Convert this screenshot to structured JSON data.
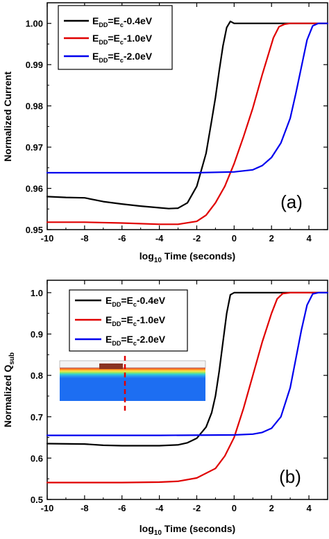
{
  "chart_data": [
    {
      "type": "line",
      "panel_label": "(a)",
      "xlabel": {
        "prefix": "log",
        "subscript": "10",
        "suffix": " Time (seconds)"
      },
      "ylabel": "Normalized Current",
      "xlim": [
        -10,
        5
      ],
      "ylim": [
        0.95,
        1.005
      ],
      "xticks": [
        -10,
        -8,
        -6,
        -4,
        -2,
        0,
        2,
        4
      ],
      "xtick_labels": [
        "-10",
        "-8",
        "-6",
        "-4",
        "-2",
        "0",
        "2",
        "4"
      ],
      "yticks": [
        0.95,
        0.96,
        0.97,
        0.98,
        0.99,
        1.0
      ],
      "ytick_labels": [
        "0.95",
        "0.96",
        "0.97",
        "0.98",
        "0.99",
        "1.00"
      ],
      "legend_position": "top-left",
      "series": [
        {
          "name": "E_DD=E_c-0.4eV",
          "color": "#000000",
          "x": [
            -10,
            -9,
            -8,
            -7,
            -6,
            -5,
            -4,
            -3.5,
            -3,
            -2.5,
            -2,
            -1.5,
            -1.2,
            -1.0,
            -0.8,
            -0.6,
            -0.4,
            -0.2,
            0,
            1,
            2,
            3,
            4,
            5
          ],
          "y": [
            0.958,
            0.9578,
            0.9577,
            0.9568,
            0.9562,
            0.9557,
            0.9553,
            0.9551,
            0.9552,
            0.9565,
            0.9605,
            0.9685,
            0.9765,
            0.982,
            0.9885,
            0.9945,
            0.999,
            1.0005,
            1.0,
            1.0,
            1.0,
            1.0,
            1.0,
            1.0
          ]
        },
        {
          "name": "E_DD=E_c-1.0eV",
          "color": "#e00000",
          "x": [
            -10,
            -8,
            -6,
            -4,
            -3,
            -2,
            -1.5,
            -1,
            -0.5,
            0,
            0.5,
            1,
            1.5,
            1.8,
            2.1,
            2.4,
            2.7,
            3,
            4,
            5
          ],
          "y": [
            0.9518,
            0.9518,
            0.9516,
            0.9513,
            0.9513,
            0.952,
            0.9535,
            0.9565,
            0.9605,
            0.966,
            0.9725,
            0.9795,
            0.9875,
            0.992,
            0.9965,
            0.9992,
            0.9998,
            1.0,
            1.0,
            1.0
          ]
        },
        {
          "name": "E_DD=E_c-2.0eV",
          "color": "#0000ee",
          "x": [
            -10,
            -6,
            -2,
            0,
            1,
            1.5,
            2,
            2.5,
            3,
            3.3,
            3.6,
            3.9,
            4.2,
            4.5,
            5
          ],
          "y": [
            0.9638,
            0.9638,
            0.9638,
            0.964,
            0.9645,
            0.9655,
            0.9675,
            0.971,
            0.977,
            0.983,
            0.9895,
            0.996,
            0.9994,
            1.0,
            1.0
          ]
        }
      ]
    },
    {
      "type": "line",
      "panel_label": "(b)",
      "xlabel": {
        "prefix": "log",
        "subscript": "10",
        "suffix": " Time (seconds)"
      },
      "ylabel": {
        "prefix": "Normalized Q",
        "subscript": "sub"
      },
      "xlim": [
        -10,
        5
      ],
      "ylim": [
        0.5,
        1.03
      ],
      "xticks": [
        -10,
        -8,
        -6,
        -4,
        -2,
        0,
        2,
        4
      ],
      "xtick_labels": [
        "-10",
        "-8",
        "-6",
        "-4",
        "-2",
        "0",
        "2",
        "4"
      ],
      "yticks": [
        0.5,
        0.6,
        0.7,
        0.8,
        0.9,
        1.0
      ],
      "ytick_labels": [
        "0.5",
        "0.6",
        "0.7",
        "0.8",
        "0.9",
        "1.0"
      ],
      "legend_position": "top-left",
      "inset": "device cross-section contour with vertical dashed red line",
      "series": [
        {
          "name": "E_DD=E_c-0.4eV",
          "color": "#000000",
          "x": [
            -10,
            -8,
            -7,
            -6,
            -4,
            -3,
            -2.5,
            -2,
            -1.5,
            -1.2,
            -1.0,
            -0.8,
            -0.6,
            -0.4,
            -0.2,
            0,
            1,
            2,
            3,
            4,
            5
          ],
          "y": [
            0.635,
            0.634,
            0.631,
            0.63,
            0.63,
            0.632,
            0.637,
            0.648,
            0.675,
            0.71,
            0.75,
            0.81,
            0.88,
            0.95,
            0.995,
            1.0,
            1.0,
            1.0,
            1.0,
            1.0,
            1.0
          ]
        },
        {
          "name": "E_DD=E_c-1.0eV",
          "color": "#e00000",
          "x": [
            -10,
            -6,
            -4,
            -3,
            -2,
            -1,
            -0.5,
            0,
            0.5,
            1,
            1.5,
            2,
            2.3,
            2.6,
            3,
            4,
            5
          ],
          "y": [
            0.541,
            0.541,
            0.542,
            0.544,
            0.552,
            0.575,
            0.605,
            0.65,
            0.72,
            0.8,
            0.88,
            0.95,
            0.985,
            0.998,
            1.0,
            1.0,
            1.0
          ]
        },
        {
          "name": "E_DD=E_c-2.0eV",
          "color": "#0000ee",
          "x": [
            -10,
            -4,
            0,
            1,
            1.5,
            2,
            2.5,
            3,
            3.3,
            3.6,
            3.9,
            4.2,
            4.5,
            5
          ],
          "y": [
            0.655,
            0.655,
            0.656,
            0.658,
            0.662,
            0.672,
            0.7,
            0.77,
            0.84,
            0.91,
            0.97,
            0.997,
            1.0,
            1.0
          ]
        }
      ]
    }
  ],
  "legend_entries": [
    {
      "E": "E",
      "sub1": "DD",
      "eq": "=E",
      "sub2": "c",
      "tail": "-0.4eV"
    },
    {
      "E": "E",
      "sub1": "DD",
      "eq": "=E",
      "sub2": "c",
      "tail": "-1.0eV"
    },
    {
      "E": "E",
      "sub1": "DD",
      "eq": "=E",
      "sub2": "c",
      "tail": "-2.0eV"
    }
  ],
  "colors": {
    "black": "#000000",
    "red": "#e00000",
    "blue": "#0000ee"
  }
}
